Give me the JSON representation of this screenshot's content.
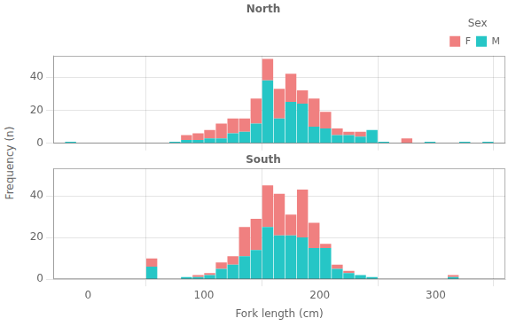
{
  "chart_data": [
    {
      "type": "bar",
      "title": "North",
      "ylabel": "Frequency (n)",
      "legend_title": "Sex",
      "legend": "upper right",
      "stacked": true,
      "grid": true,
      "tick_labels": "y",
      "x": [
        -15,
        -5,
        5,
        15,
        25,
        35,
        45,
        55,
        65,
        75,
        85,
        95,
        105,
        115,
        125,
        135,
        145,
        155,
        165,
        175,
        185,
        195,
        205,
        215,
        225,
        235,
        245,
        255,
        265,
        275,
        285,
        295,
        305,
        315,
        325,
        335,
        345
      ],
      "series": [
        {
          "name": "M",
          "color": "#26C6C6",
          "values": [
            1,
            0,
            0,
            0,
            0,
            0,
            0,
            0,
            0,
            1,
            2,
            2,
            3,
            3,
            6,
            7,
            12,
            38,
            15,
            25,
            24,
            10,
            9,
            5,
            5,
            4,
            8,
            1,
            0,
            0,
            0,
            1,
            0,
            0,
            1,
            0,
            1
          ]
        },
        {
          "name": "F",
          "color": "#F08080",
          "values": [
            0,
            0,
            0,
            0,
            0,
            0,
            0,
            0,
            0,
            0,
            3,
            4,
            5,
            9,
            9,
            8,
            15,
            13,
            18,
            17,
            8,
            17,
            10,
            4,
            2,
            3,
            0,
            0,
            0,
            3,
            0,
            0,
            0,
            0,
            0,
            0,
            0
          ]
        }
      ],
      "xlim": [
        -30,
        360
      ],
      "xticks": [
        0,
        100,
        200,
        300
      ],
      "ylim": [
        0,
        53
      ],
      "yticks": [
        0,
        20,
        40
      ]
    },
    {
      "type": "bar",
      "title": "South",
      "xlabel": "Fork length (cm)",
      "stacked": true,
      "grid": true,
      "x": [
        -15,
        -5,
        5,
        15,
        25,
        35,
        45,
        55,
        65,
        75,
        85,
        95,
        105,
        115,
        125,
        135,
        145,
        155,
        165,
        175,
        185,
        195,
        205,
        215,
        225,
        235,
        245,
        255,
        265,
        275,
        285,
        295,
        305,
        315,
        325,
        335,
        345
      ],
      "series": [
        {
          "name": "M",
          "color": "#26C6C6",
          "values": [
            0,
            0,
            0,
            0,
            0,
            0,
            0,
            6,
            0,
            0,
            1,
            1,
            2,
            5,
            7,
            11,
            14,
            25,
            21,
            21,
            20,
            15,
            15,
            5,
            3,
            2,
            1,
            0,
            0,
            0,
            0,
            0,
            0,
            1,
            0,
            0,
            0
          ]
        },
        {
          "name": "F",
          "color": "#F08080",
          "values": [
            0,
            0,
            0,
            0,
            0,
            0,
            0,
            4,
            0,
            0,
            0,
            1,
            1,
            3,
            4,
            14,
            15,
            20,
            20,
            10,
            23,
            12,
            2,
            2,
            1,
            0,
            0,
            0,
            0,
            0,
            0,
            0,
            0,
            1,
            0,
            0,
            0
          ]
        }
      ],
      "xlim": [
        -30,
        360
      ],
      "xticks": [
        0,
        100,
        200,
        300
      ],
      "ylim": [
        0,
        53
      ],
      "yticks": [
        0,
        20,
        40
      ]
    }
  ]
}
